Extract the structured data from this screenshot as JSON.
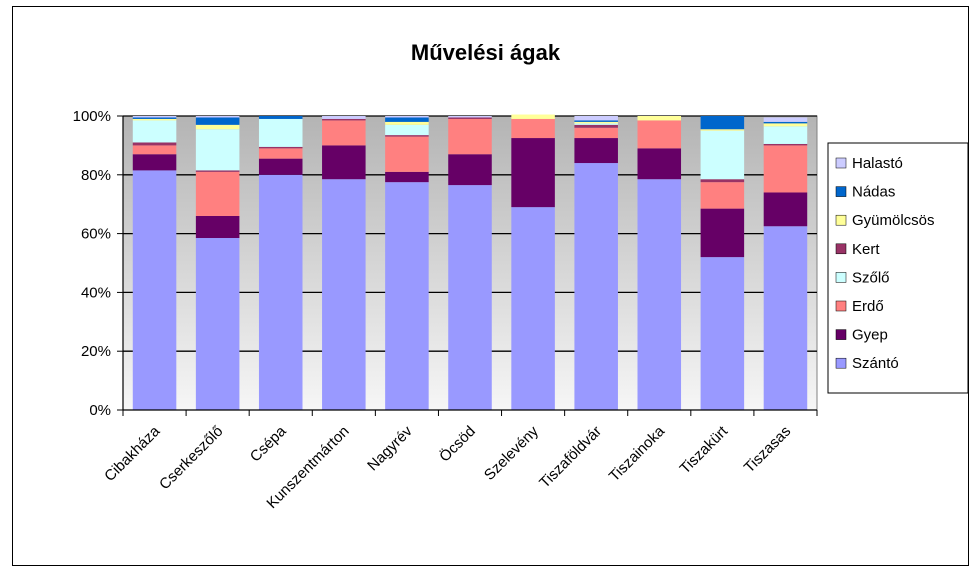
{
  "chart_data": {
    "type": "bar",
    "stacked": "percent",
    "title": "Művelési ágak",
    "xlabel": "",
    "ylabel": "",
    "ylim": [
      0,
      100
    ],
    "y_ticks": [
      "0%",
      "20%",
      "40%",
      "60%",
      "80%",
      "100%"
    ],
    "grid": true,
    "legend_position": "right",
    "categories": [
      "Cibakháza",
      "Cserkeszőlő",
      "Csépa",
      "Kunszentmárton",
      "Nagyrév",
      "Öcsöd",
      "Szelevény",
      "Tiszaföldvár",
      "Tiszainoka",
      "Tiszakürt",
      "Tiszasas"
    ],
    "series": [
      {
        "name": "Szántó",
        "color": "#9999ff",
        "values": [
          81.5,
          58.5,
          80,
          78.5,
          77.5,
          76.5,
          69,
          84,
          78.5,
          52,
          62.5
        ]
      },
      {
        "name": "Gyep",
        "color": "#660066",
        "values": [
          5.5,
          7.5,
          5.5,
          11.5,
          3.5,
          10.5,
          23.5,
          8.5,
          10.5,
          16.5,
          11.5
        ]
      },
      {
        "name": "Erdő",
        "color": "#ff8080",
        "values": [
          3,
          15,
          3.5,
          8.5,
          12,
          12,
          6.5,
          3.5,
          9.5,
          9,
          16
        ]
      },
      {
        "name": "Kert",
        "color": "#993366",
        "values": [
          1,
          0.5,
          0.5,
          0.5,
          0.5,
          0.5,
          0,
          1,
          0,
          1,
          0.5
        ]
      },
      {
        "name": "Szőlő",
        "color": "#ccffff",
        "values": [
          7.5,
          14,
          9.5,
          0,
          3.5,
          0,
          0,
          0.5,
          0,
          16.5,
          6
        ]
      },
      {
        "name": "Gyümölcsös",
        "color": "#ffff99",
        "values": [
          0.5,
          1.5,
          0,
          0,
          1,
          0,
          1.5,
          0.5,
          1.5,
          0.5,
          1
        ]
      },
      {
        "name": "Nádas",
        "color": "#0066cc",
        "values": [
          0.5,
          2.5,
          1,
          0,
          1.5,
          0,
          0,
          0.5,
          0,
          4.5,
          0.5
        ]
      },
      {
        "name": "Halastó",
        "color": "#ccccff",
        "values": [
          0.5,
          0.5,
          0,
          1,
          0.5,
          0.5,
          0,
          1.5,
          0,
          0,
          1.5
        ]
      }
    ],
    "legend_order": [
      "Halastó",
      "Nádas",
      "Gyümölcsös",
      "Kert",
      "Szőlő",
      "Erdő",
      "Gyep",
      "Szántó"
    ]
  }
}
